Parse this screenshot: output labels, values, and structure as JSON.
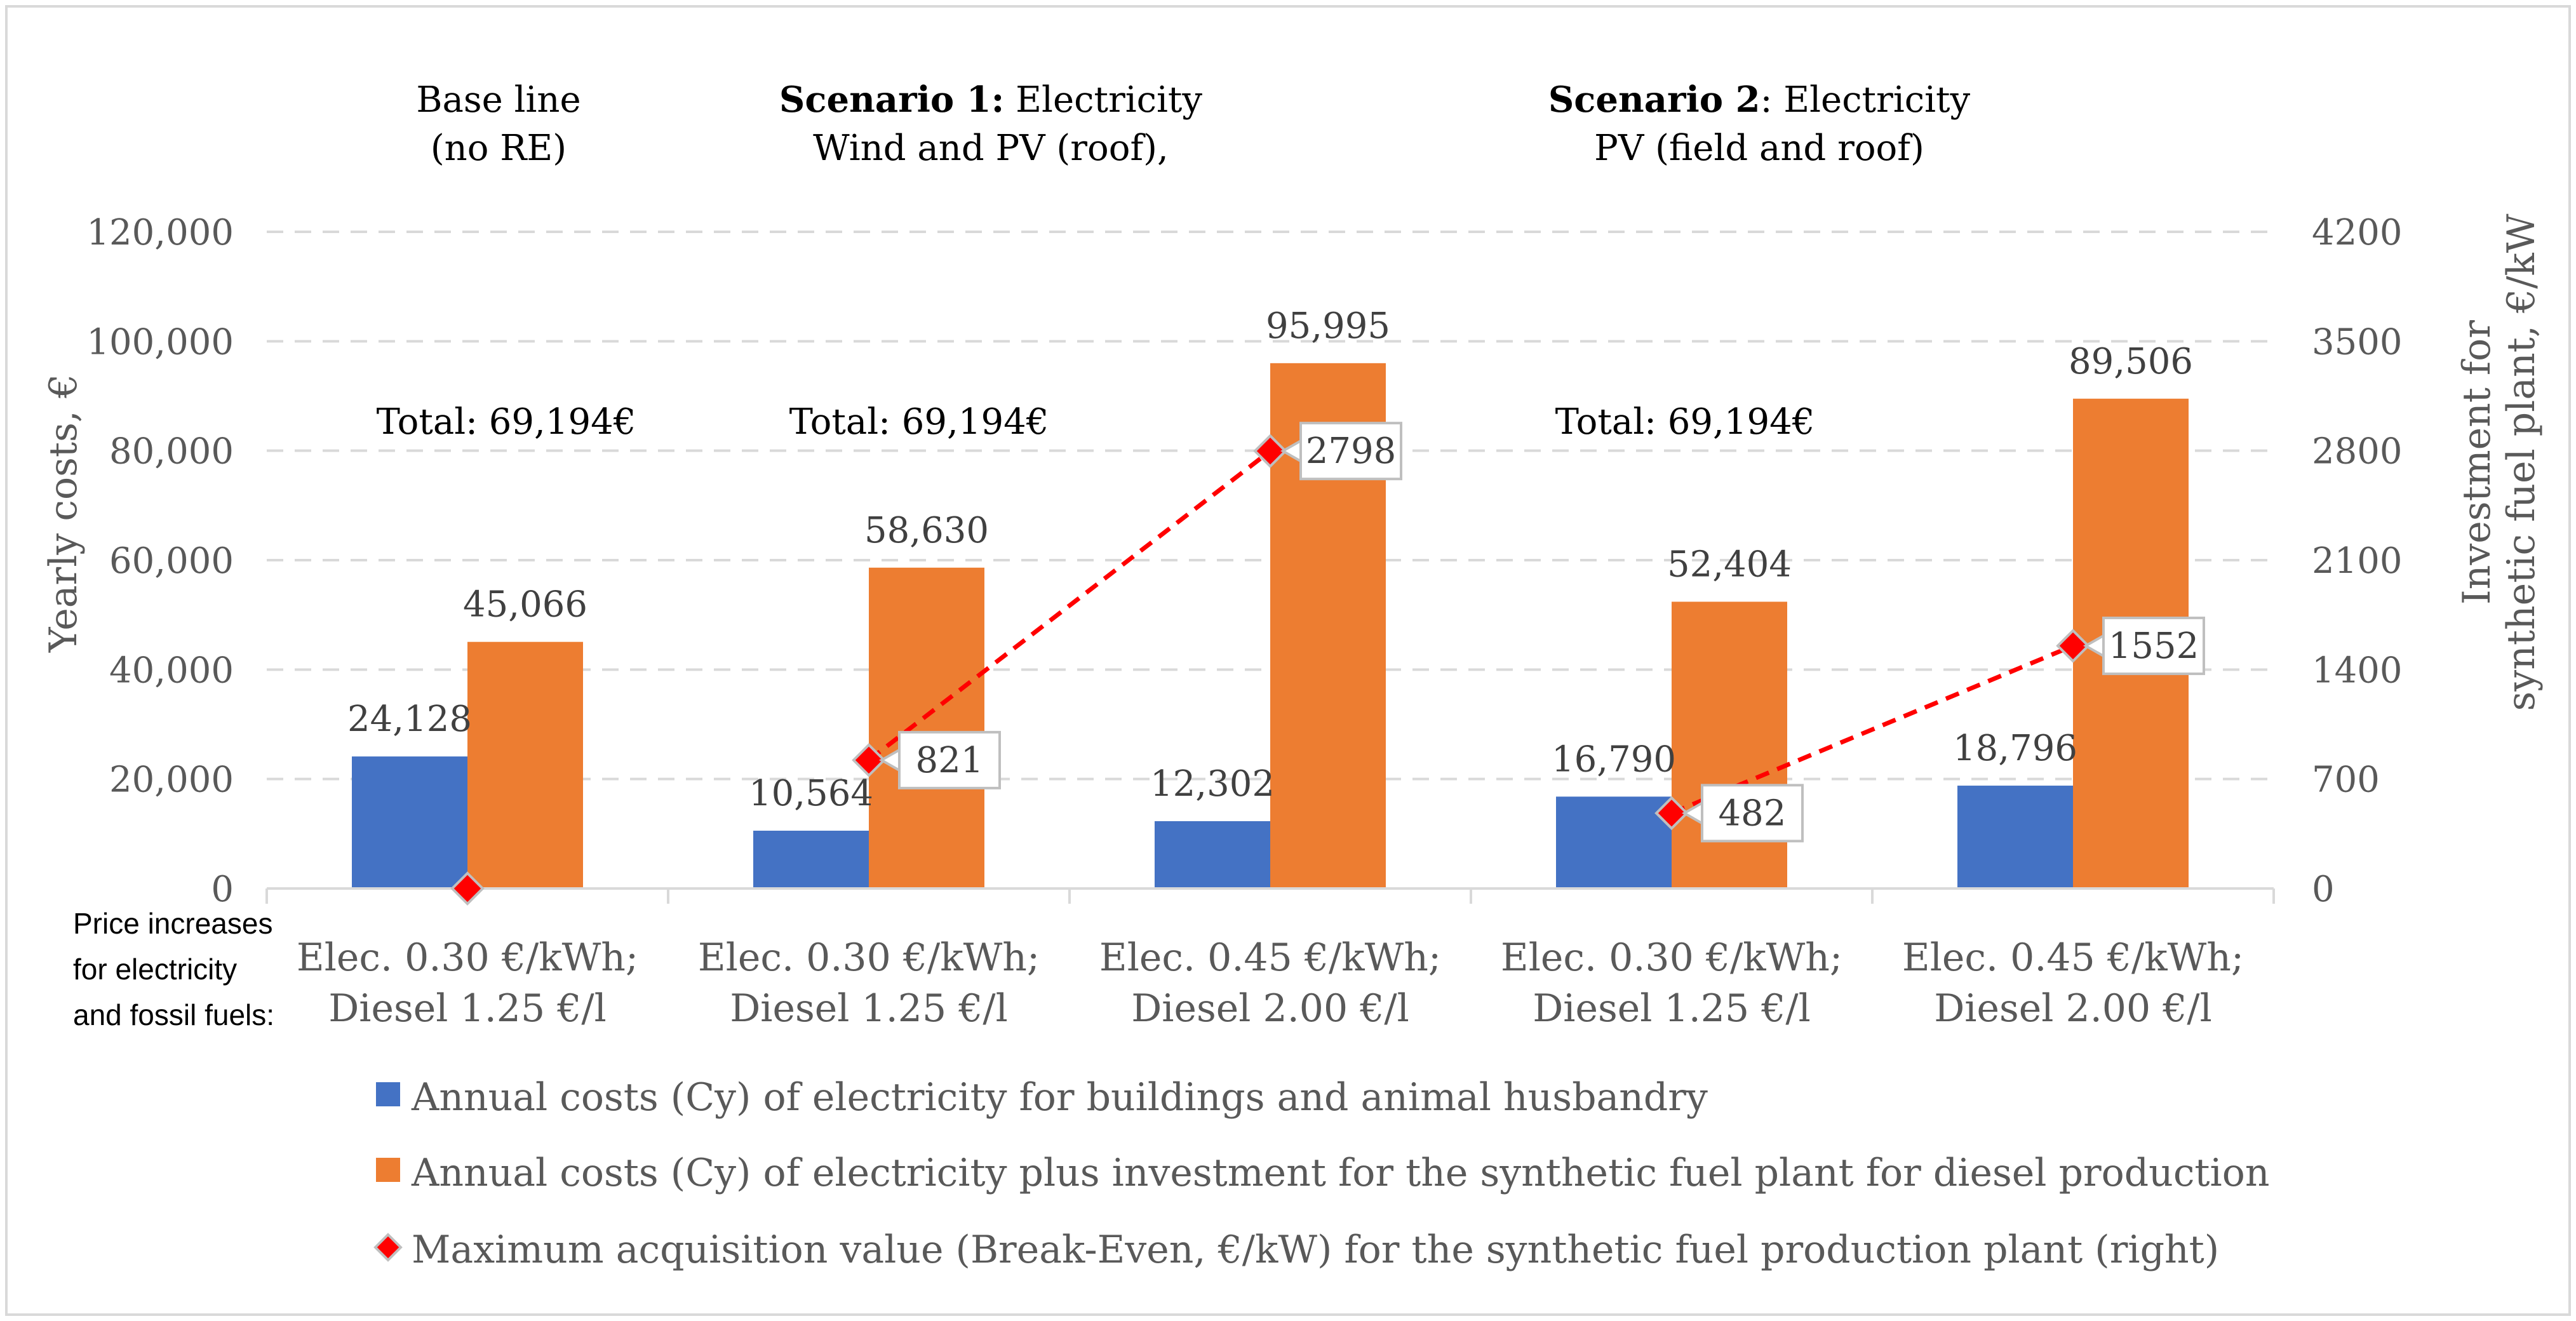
{
  "chart_data": {
    "type": "bar",
    "y_axis_label": "Yearly costs, €",
    "y2_axis_label_line1": "Investment for",
    "y2_axis_label_line2": "synthetic fuel plant, €/kW",
    "ylim": [
      0,
      120000
    ],
    "y_ticks": [
      0,
      20000,
      40000,
      60000,
      80000,
      100000,
      120000
    ],
    "y_tick_labels": [
      "0",
      "20,000",
      "40,000",
      "60,000",
      "80,000",
      "100,000",
      "120,000"
    ],
    "y2lim": [
      0,
      4200
    ],
    "y2_ticks": [
      0,
      700,
      1400,
      2100,
      2800,
      3500,
      4200
    ],
    "y2_tick_labels": [
      "0",
      "700",
      "1400",
      "2100",
      "2800",
      "3500",
      "4200"
    ],
    "grid": true,
    "price_note": [
      "Price increases",
      "for electricity",
      "and fossil fuels:"
    ],
    "categories": [
      {
        "line1": "Elec. 0.30 €/kWh;",
        "line2": "Diesel  1.25 €/l"
      },
      {
        "line1": "Elec. 0.30 €/kWh;",
        "line2": "Diesel  1.25 €/l"
      },
      {
        "line1": "Elec. 0.45 €/kWh;",
        "line2": "Diesel 2.00 €/l"
      },
      {
        "line1": "Elec. 0.30 €/kWh;",
        "line2": "Diesel  1.25 €/l"
      },
      {
        "line1": "Elec. 0.45 €/kWh;",
        "line2": "Diesel 2.00 €/l"
      }
    ],
    "series": [
      {
        "name": "Annual costs (Cy) of electricity for buildings and animal husbandry",
        "color": "#4472C4",
        "values": [
          24128,
          10564,
          12302,
          16790,
          18796
        ],
        "labels": [
          "24,128",
          "10,564",
          "12,302",
          "16,790",
          "18,796"
        ]
      },
      {
        "name": "Annual costs (Cy) of electricity plus investment for the synthetic fuel plant for diesel production",
        "color": "#ED7D31",
        "values": [
          45066,
          58630,
          95995,
          52404,
          89506
        ],
        "labels": [
          "45,066",
          "58,630",
          "95,995",
          "52,404",
          "89,506"
        ]
      }
    ],
    "break_even": {
      "name": "Maximum acquisition value (Break-Even, €/kW) for the synthetic fuel production plant (right)",
      "color": "#FF0000",
      "points": [
        {
          "category": 0,
          "value": 0,
          "label": null
        },
        {
          "category": 1,
          "value": 821,
          "label": "821"
        },
        {
          "category": 2,
          "value": 2798,
          "label": "2798"
        },
        {
          "category": 3,
          "value": 482,
          "label": "482"
        },
        {
          "category": 4,
          "value": 1552,
          "label": "1552"
        }
      ],
      "dashed_links": [
        [
          1,
          2
        ],
        [
          3,
          4
        ]
      ]
    },
    "group_headers": [
      {
        "bold": "",
        "line1_rest": "Base line",
        "line2": "(no RE)"
      },
      {
        "bold": "Scenario 1:",
        "line1_rest": " Electricity",
        "line2": "Wind  and PV (roof),"
      },
      {
        "bold": "Scenario 2",
        "line1_rest": ": Electricity",
        "line2": "PV (field and roof)"
      }
    ],
    "totals": [
      "Total: 69,194€",
      "Total: 69,194€",
      "Total: 69,194€"
    ]
  }
}
